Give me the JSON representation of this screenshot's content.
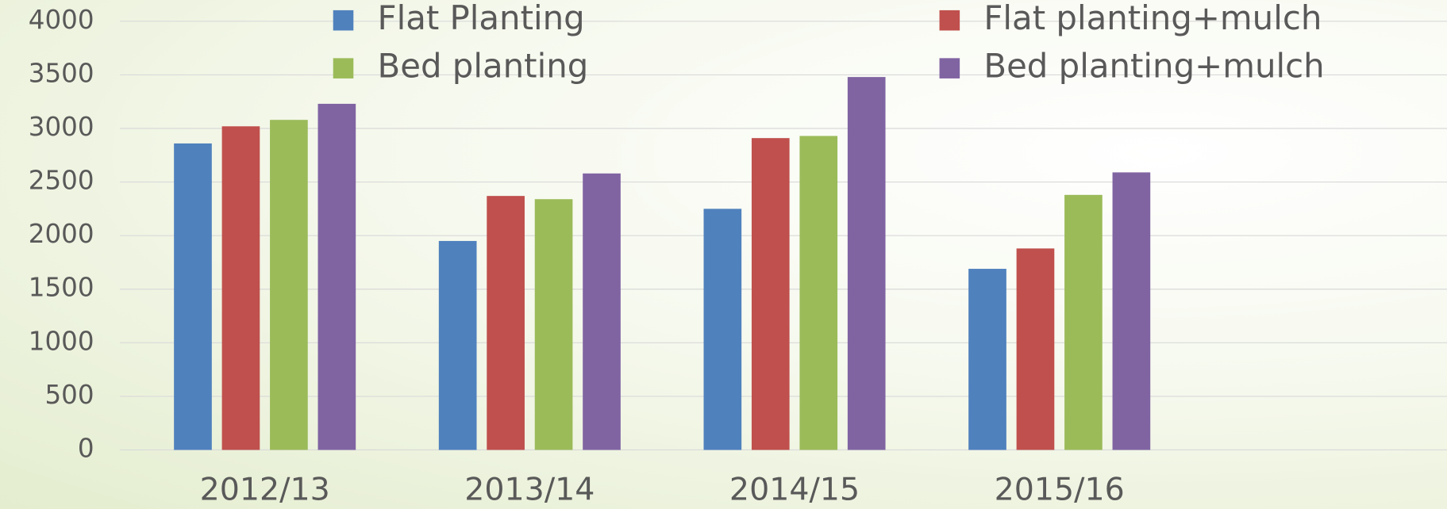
{
  "chart_data": {
    "type": "bar",
    "categories": [
      "2012/13",
      "2013/14",
      "2014/15",
      "2015/16"
    ],
    "series": [
      {
        "name": "Flat Planting",
        "color": "#4f81bd",
        "values": [
          2860,
          1950,
          2250,
          1690
        ]
      },
      {
        "name": "Flat planting+mulch",
        "color": "#c0504d",
        "values": [
          3020,
          2370,
          2910,
          1880
        ]
      },
      {
        "name": "Bed planting",
        "color": "#9bbb59",
        "values": [
          3080,
          2340,
          2930,
          2380
        ]
      },
      {
        "name": "Bed planting+mulch",
        "color": "#8064a2",
        "values": [
          3230,
          2580,
          3480,
          2590
        ]
      }
    ],
    "ylim": [
      0,
      4000
    ],
    "yticks": [
      0,
      500,
      1000,
      1500,
      2000,
      2500,
      3000,
      3500,
      4000
    ],
    "grid": true
  }
}
